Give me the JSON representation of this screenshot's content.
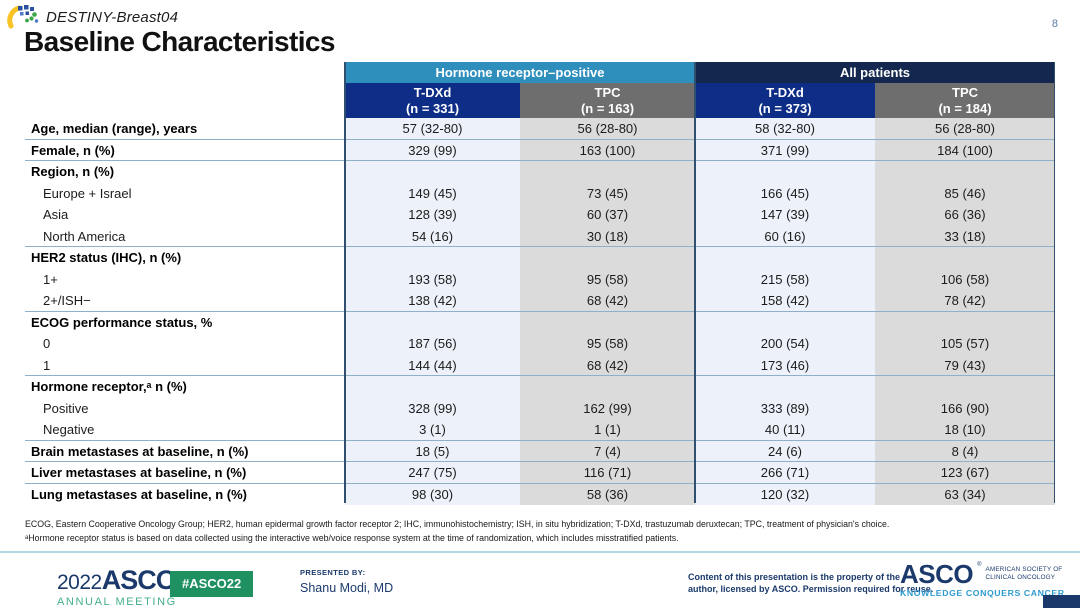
{
  "slide": {
    "trial_name": "DESTINY-Breast04",
    "page_number": "8",
    "title": "Baseline Characteristics"
  },
  "table": {
    "group_headers": [
      {
        "label": "Hormone receptor–positive"
      },
      {
        "label": "All patients"
      }
    ],
    "column_headers": [
      {
        "drug": "T-DXd",
        "n": "(n = 331)"
      },
      {
        "drug": "TPC",
        "n": "(n = 163)"
      },
      {
        "drug": "T-DXd",
        "n": "(n = 373)"
      },
      {
        "drug": "TPC",
        "n": "(n = 184)"
      }
    ],
    "rows": [
      {
        "label": "Age, median (range), years",
        "bold": true,
        "indent": false,
        "rule": true,
        "values": [
          "57 (32-80)",
          "56 (28-80)",
          "58 (32-80)",
          "56 (28-80)"
        ]
      },
      {
        "label": "Female, n (%)",
        "bold": true,
        "indent": false,
        "rule": true,
        "values": [
          "329 (99)",
          "163 (100)",
          "371 (99)",
          "184 (100)"
        ]
      },
      {
        "label": "Region, n (%)",
        "bold": true,
        "indent": false,
        "rule": false,
        "values": [
          "",
          "",
          "",
          ""
        ]
      },
      {
        "label": "Europe + Israel",
        "bold": false,
        "indent": true,
        "rule": false,
        "values": [
          "149 (45)",
          "73 (45)",
          "166 (45)",
          "85 (46)"
        ]
      },
      {
        "label": "Asia",
        "bold": false,
        "indent": true,
        "rule": false,
        "values": [
          "128 (39)",
          "60 (37)",
          "147 (39)",
          "66 (36)"
        ]
      },
      {
        "label": "North America",
        "bold": false,
        "indent": true,
        "rule": true,
        "values": [
          "54 (16)",
          "30 (18)",
          "60 (16)",
          "33 (18)"
        ]
      },
      {
        "label": "HER2 status (IHC), n (%)",
        "bold": true,
        "indent": false,
        "rule": false,
        "values": [
          "",
          "",
          "",
          ""
        ]
      },
      {
        "label": "1+",
        "bold": false,
        "indent": true,
        "rule": false,
        "values": [
          "193 (58)",
          "95 (58)",
          "215 (58)",
          "106 (58)"
        ]
      },
      {
        "label": "2+/ISH−",
        "bold": false,
        "indent": true,
        "rule": true,
        "values": [
          "138 (42)",
          "68 (42)",
          "158 (42)",
          "78 (42)"
        ]
      },
      {
        "label": "ECOG performance status, %",
        "bold": true,
        "indent": false,
        "rule": false,
        "values": [
          "",
          "",
          "",
          ""
        ]
      },
      {
        "label": "0",
        "bold": false,
        "indent": true,
        "rule": false,
        "values": [
          "187 (56)",
          "95 (58)",
          "200 (54)",
          "105 (57)"
        ]
      },
      {
        "label": "1",
        "bold": false,
        "indent": true,
        "rule": true,
        "values": [
          "144 (44)",
          "68 (42)",
          "173 (46)",
          "79 (43)"
        ]
      },
      {
        "label": "Hormone receptor,ᵃ n (%)",
        "bold": true,
        "indent": false,
        "rule": false,
        "values": [
          "",
          "",
          "",
          ""
        ]
      },
      {
        "label": "Positive",
        "bold": false,
        "indent": true,
        "rule": false,
        "values": [
          "328 (99)",
          "162 (99)",
          "333 (89)",
          "166 (90)"
        ]
      },
      {
        "label": "Negative",
        "bold": false,
        "indent": true,
        "rule": true,
        "values": [
          "3 (1)",
          "1 (1)",
          "40 (11)",
          "18 (10)"
        ]
      },
      {
        "label": "Brain metastases at baseline, n (%)",
        "bold": true,
        "indent": false,
        "rule": true,
        "values": [
          "18 (5)",
          "7 (4)",
          "24 (6)",
          "8 (4)"
        ]
      },
      {
        "label": "Liver metastases at baseline, n (%)",
        "bold": true,
        "indent": false,
        "rule": true,
        "values": [
          "247 (75)",
          "116 (71)",
          "266 (71)",
          "123 (67)"
        ]
      },
      {
        "label": "Lung metastases at baseline, n (%)",
        "bold": true,
        "indent": false,
        "rule": false,
        "values": [
          "98 (30)",
          "58 (36)",
          "120 (32)",
          "63 (34)"
        ]
      }
    ]
  },
  "footnotes": {
    "abbreviations": "ECOG, Eastern Cooperative Oncology Group; HER2, human epidermal growth factor receptor 2; IHC, immunohistochemistry; ISH, in situ hybridization; T-DXd, trastuzumab deruxtecan; TPC, treatment of physician's choice.",
    "footnote_a": "ᵃHormone receptor status is based on data collected using the interactive web/voice response system at the time of randomization, which includes misstratified patients."
  },
  "footer": {
    "year": "2022",
    "asco_word": "ASCO",
    "reg_mark": "®",
    "annual_meeting": "ANNUAL MEETING",
    "hashtag": "#ASCO22",
    "presented_by_label": "PRESENTED BY:",
    "presenter": "Shanu Modi, MD",
    "license_line1": "Content of this presentation is the property of the",
    "license_line2": "author, licensed by ASCO. Permission required for reuse.",
    "asco_logo_word": "ASCO",
    "society_line1": "AMERICAN SOCIETY OF",
    "society_line2": "CLINICAL ONCOLOGY",
    "tagline": "KNOWLEDGE CONQUERS CANCER"
  },
  "colors": {
    "teal_header": "#2E8FBC",
    "all_patients_header": "#14284F",
    "tdxd_header": "#0E2D87",
    "tpc_header": "#6E6E6E",
    "tdxd_column_bg": "#EDF1F9",
    "tpc_column_bg": "#DBDBDB",
    "footer_navy": "#1B3A6B",
    "badge_green": "#1F9160",
    "annual_meeting_green": "#44AE8C",
    "tagline_blue": "#2E9AD0"
  }
}
